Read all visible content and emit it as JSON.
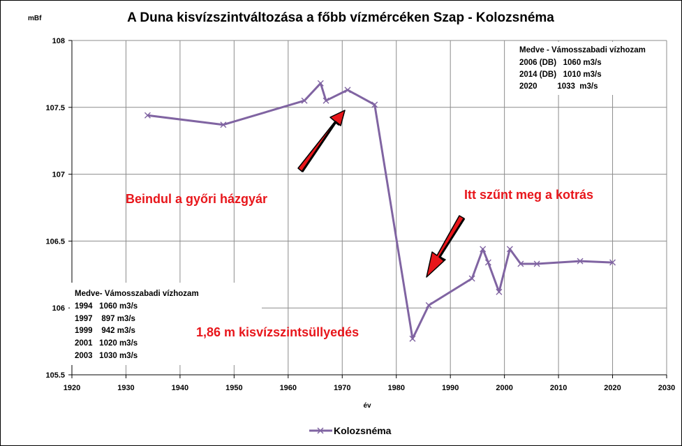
{
  "chart_data": {
    "type": "line",
    "title": "A Duna kisvízszintváltozása a főbb vízmércéken Szap - Kolozsnéma",
    "xlabel": "év",
    "ylabel": "mBf",
    "xlim": [
      1920,
      2030
    ],
    "ylim": [
      105.5,
      108
    ],
    "x_ticks": [
      "1920",
      "1930",
      "1940",
      "1950",
      "1960",
      "1970",
      "1980",
      "1990",
      "2000",
      "2010",
      "2020",
      "2030"
    ],
    "y_ticks": [
      "105.5",
      "106",
      "106.5",
      "107",
      "107.5",
      "108"
    ],
    "grid": true,
    "legend_position": "bottom",
    "series": [
      {
        "name": "Kolozsnéma",
        "color": "#8064a2",
        "marker": "x",
        "x": [
          1934,
          1948,
          1963,
          1966,
          1967,
          1971,
          1976,
          1983,
          1986,
          1994,
          1996,
          1997,
          1999,
          2001,
          2003,
          2006,
          2014,
          2020
        ],
        "y": [
          107.44,
          107.37,
          107.55,
          107.68,
          107.55,
          107.63,
          107.52,
          105.77,
          106.02,
          106.22,
          106.44,
          106.34,
          106.12,
          106.44,
          106.33,
          106.33,
          106.35,
          106.34
        ]
      }
    ],
    "annotations": {
      "left_text": "Beindul a győri házgyár",
      "right_text": "Itt szűnt meg a kotrás",
      "drop_text": "1,86 m kisvízszintsüllyedés"
    },
    "info_top": {
      "heading": "Medve - Vámosszabadi vízhozam",
      "rows": [
        "2006 (DB)   1060 m3/s",
        "2014 (DB)   1010 m3/s",
        "2020         1033  m3/s"
      ]
    },
    "info_bottom": {
      "heading": "Medve- Vámosszabadi vízhozam",
      "rows": [
        "1994   1060 m3/s",
        "1997    897 m3/s",
        "1999    942 m3/s",
        "2001   1020 m3/s",
        "2003   1030 m3/s"
      ]
    }
  }
}
